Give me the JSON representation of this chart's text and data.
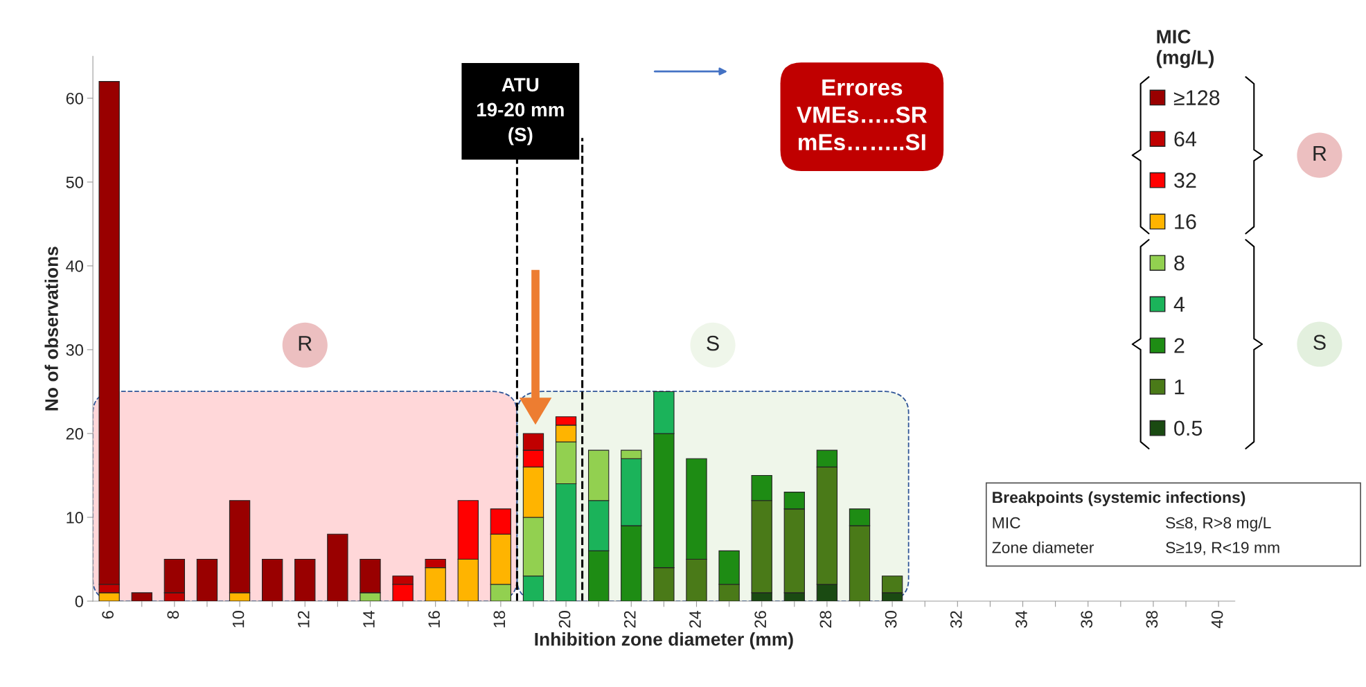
{
  "chart_data": {
    "type": "bar",
    "stacked": true,
    "xlabel": "Inhibition zone diameter (mm)",
    "ylabel": "No of observations",
    "legend_title": "MIC\n(mg/L)",
    "x": [
      6,
      7,
      8,
      9,
      10,
      11,
      12,
      13,
      14,
      15,
      16,
      17,
      18,
      19,
      20,
      21,
      22,
      23,
      24,
      25,
      26,
      27,
      28,
      29,
      30,
      31,
      32,
      33,
      34,
      35,
      36,
      37,
      38,
      39,
      40
    ],
    "series": [
      {
        "name": "0.5",
        "color": "#1a4a12",
        "values": [
          0,
          0,
          0,
          0,
          0,
          0,
          0,
          0,
          0,
          0,
          0,
          0,
          0,
          0,
          0,
          0,
          0,
          0,
          0,
          0,
          1,
          1,
          2,
          0,
          1,
          0,
          0,
          0,
          0,
          0,
          0,
          0,
          0,
          0,
          0
        ]
      },
      {
        "name": "1",
        "color": "#4a7a18",
        "values": [
          0,
          0,
          0,
          0,
          0,
          0,
          0,
          0,
          0,
          0,
          0,
          0,
          0,
          0,
          0,
          0,
          0,
          4,
          5,
          2,
          11,
          10,
          14,
          9,
          2,
          0,
          0,
          0,
          0,
          0,
          0,
          0,
          0,
          0,
          0
        ]
      },
      {
        "name": "2",
        "color": "#1e8c14",
        "values": [
          0,
          0,
          0,
          0,
          0,
          0,
          0,
          0,
          0,
          0,
          0,
          0,
          0,
          0,
          0,
          6,
          9,
          16,
          12,
          4,
          3,
          2,
          2,
          2,
          0,
          0,
          0,
          0,
          0,
          0,
          0,
          0,
          0,
          0,
          0
        ]
      },
      {
        "name": "4",
        "color": "#1bb35a",
        "values": [
          0,
          0,
          0,
          0,
          0,
          0,
          0,
          0,
          0,
          0,
          0,
          0,
          0,
          3,
          14,
          6,
          8,
          5,
          0,
          0,
          0,
          0,
          0,
          0,
          0,
          0,
          0,
          0,
          0,
          0,
          0,
          0,
          0,
          0,
          0
        ]
      },
      {
        "name": "8",
        "color": "#92d050",
        "values": [
          0,
          0,
          0,
          0,
          0,
          0,
          0,
          0,
          1,
          0,
          0,
          0,
          2,
          7,
          5,
          6,
          1,
          0,
          0,
          0,
          0,
          0,
          0,
          0,
          0,
          0,
          0,
          0,
          0,
          0,
          0,
          0,
          0,
          0,
          0
        ]
      },
      {
        "name": "16",
        "color": "#ffb400",
        "values": [
          1,
          0,
          0,
          0,
          1,
          0,
          0,
          0,
          0,
          0,
          4,
          5,
          6,
          6,
          2,
          0,
          0,
          0,
          0,
          0,
          0,
          0,
          0,
          0,
          0,
          0,
          0,
          0,
          0,
          0,
          0,
          0,
          0,
          0,
          0
        ]
      },
      {
        "name": "32",
        "color": "#ff0000",
        "values": [
          0,
          0,
          0,
          0,
          0,
          0,
          0,
          0,
          0,
          2,
          0,
          7,
          3,
          2,
          1,
          0,
          0,
          0,
          0,
          0,
          0,
          0,
          0,
          0,
          0,
          0,
          0,
          0,
          0,
          0,
          0,
          0,
          0,
          0,
          0
        ]
      },
      {
        "name": "64",
        "color": "#c00000",
        "values": [
          1,
          0,
          1,
          0,
          0,
          0,
          0,
          0,
          0,
          1,
          1,
          0,
          0,
          2,
          0,
          0,
          0,
          0,
          0,
          0,
          0,
          0,
          0,
          0,
          0,
          0,
          0,
          0,
          0,
          0,
          0,
          0,
          0,
          0,
          0
        ]
      },
      {
        "name": "≥128",
        "color": "#990000",
        "values": [
          60,
          1,
          4,
          5,
          11,
          5,
          5,
          8,
          4,
          0,
          0,
          0,
          0,
          0,
          0,
          0,
          0,
          0,
          0,
          0,
          0,
          0,
          0,
          0,
          0,
          0,
          0,
          0,
          0,
          0,
          0,
          0,
          0,
          0,
          0
        ]
      }
    ],
    "xlim": [
      5.5,
      40.5
    ],
    "xticks": [
      6,
      {
        "value": 7,
        "label": null
      },
      8,
      {
        "value": 9,
        "label": null
      },
      10,
      {
        "value": 11,
        "label": null
      },
      12,
      {
        "value": 13,
        "label": null
      },
      14,
      {
        "value": 15,
        "label": null
      },
      16,
      {
        "value": 17,
        "label": null
      },
      18,
      {
        "value": 19,
        "label": null
      },
      20,
      {
        "value": 21,
        "label": null
      },
      22,
      {
        "value": 23,
        "label": null
      },
      24,
      {
        "value": 25,
        "label": null
      },
      26,
      {
        "value": 27,
        "label": null
      },
      28,
      {
        "value": 29,
        "label": null
      },
      30,
      {
        "value": 31,
        "label": null
      },
      32,
      {
        "value": 33,
        "label": null
      },
      34,
      {
        "value": 35,
        "label": null
      },
      36,
      {
        "value": 37,
        "label": null
      },
      38,
      {
        "value": 39,
        "label": null
      },
      40
    ],
    "ylim": [
      0,
      65
    ],
    "yticks": [
      0,
      10,
      20,
      30,
      40,
      50,
      60
    ],
    "grid": false,
    "legend": "right",
    "ref_lines": [
      {
        "axis": "x",
        "value": 18.5,
        "color": "#000000",
        "line_style": "dashed"
      },
      {
        "axis": "x",
        "value": 20.5,
        "color": "#000000",
        "line_style": "dashed"
      }
    ],
    "bands": [
      {
        "axis": "x",
        "from": 5.5,
        "to": 18.5,
        "label": "R",
        "color": "#ffd7d9"
      },
      {
        "axis": "x",
        "from": 18.5,
        "to": 30.5,
        "label": "S",
        "color": "#eff6ea"
      }
    ],
    "annotations": [
      "ATU\n19-20 mm\n(S)",
      "Errores\nVMEs…..SR\nmEs……..SI",
      "Breakpoints (systemic infections)",
      "MIC",
      "S≤8, R>8 mg/L",
      "Zone diameter",
      "S≥19, R<19 mm"
    ]
  }
}
